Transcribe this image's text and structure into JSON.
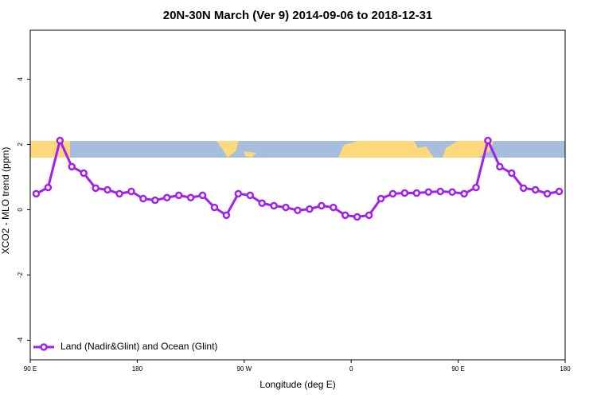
{
  "chart_data": {
    "type": "line",
    "title": "20N-30N March (Ver 9)   2014-09-06 to 2018-12-31",
    "x_label": "Longitude (deg E)",
    "y_label": "XCO2 - MLO trend (ppm)",
    "x": [
      95,
      105,
      115,
      125,
      135,
      145,
      155,
      165,
      175,
      185,
      195,
      205,
      215,
      225,
      235,
      245,
      255,
      265,
      275,
      285,
      295,
      305,
      315,
      325,
      335,
      345,
      355,
      365,
      375,
      385,
      395,
      405,
      415,
      425,
      435,
      445,
      455,
      465,
      475,
      485,
      495,
      505,
      515,
      525,
      535
    ],
    "series": [
      {
        "name": "Land (Nadir&Glint) and Ocean (Glint)",
        "color": "#a020f0",
        "values": [
          0.49,
          0.68,
          2.12,
          1.32,
          1.12,
          0.66,
          0.61,
          0.49,
          0.56,
          0.34,
          0.29,
          0.37,
          0.44,
          0.37,
          0.44,
          0.07,
          -0.17,
          0.49,
          0.44,
          0.2,
          0.12,
          0.07,
          -0.02,
          0.02,
          0.12,
          0.07,
          -0.17,
          -0.22,
          -0.17,
          0.34,
          0.49,
          0.51,
          0.51,
          0.54,
          0.56,
          0.54,
          0.49,
          0.68,
          2.12,
          1.32,
          1.12,
          0.66,
          0.61,
          0.49,
          0.56
        ]
      }
    ],
    "xlim": [
      90,
      540
    ],
    "xticks": [
      {
        "value": 90,
        "label": "90 E"
      },
      180,
      {
        "value": 270,
        "label": "90 W"
      },
      {
        "value": 360,
        "label": "0"
      },
      {
        "value": 450,
        "label": "90 E"
      },
      {
        "value": 540,
        "label": "180"
      }
    ],
    "ylim": [
      -4.6,
      5.5
    ],
    "yticks": [
      -4,
      -2,
      0,
      2,
      4
    ],
    "legend": "bottomleft"
  }
}
